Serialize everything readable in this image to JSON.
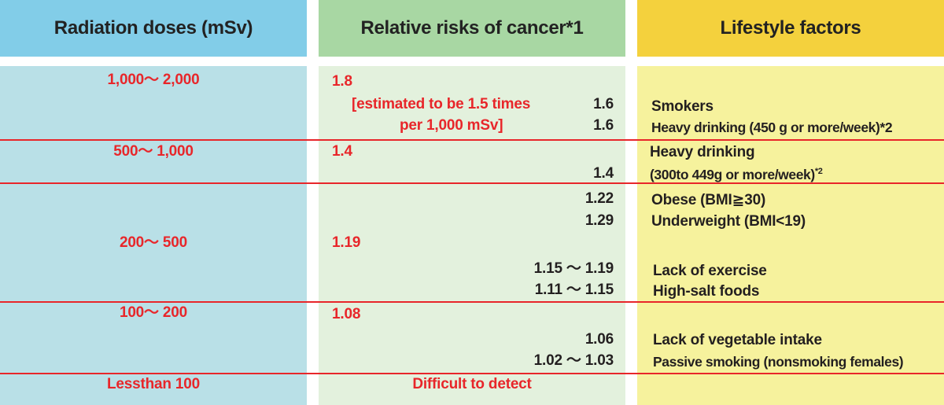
{
  "colors": {
    "radiation_bg": "#b9e0e7",
    "radiation_header": "#82cde8",
    "risk_bg": "#e3f1dd",
    "risk_header": "#a8d7a3",
    "lifestyle_bg": "#f6f29d",
    "lifestyle_header": "#f4d13d",
    "accent_red": "#e8262a",
    "text_dark": "#231f20"
  },
  "headers": {
    "radiation": "Radiation doses (mSv)",
    "risk": "Relative risks of cancer*1",
    "lifestyle": "Lifestyle factors"
  },
  "doses": {
    "d1": "1,000～ 2,000",
    "d2": "500～ 1,000",
    "d3": "200～ 500",
    "d4": "100～ 200",
    "d5": "Lessthan 100"
  },
  "radiation_risks": {
    "r1": "1.8",
    "r1_note_line1": "[estimated to be 1.5 times",
    "r1_note_line2": "per 1,000 mSv]",
    "r2": "1.4",
    "r3": "1.19",
    "r4": "1.08",
    "r5": "Difficult to detect"
  },
  "lifestyle_risks": {
    "smokers": "1.6",
    "heavy_drinking_450": "1.6",
    "heavy_drinking_300": "1.4",
    "obese": "1.22",
    "underweight": "1.29",
    "lack_of_exercise": "1.15 ～ 1.19",
    "high_salt": "1.11 ～ 1.15",
    "lack_of_vegetables": "1.06",
    "passive_smoking": "1.02 ～ 1.03"
  },
  "lifestyle_factors": {
    "smokers": "Smokers",
    "heavy_drinking_450": "Heavy drinking (450 g or more/week)*2",
    "heavy_drinking_300_line1": "Heavy drinking",
    "heavy_drinking_300_line2": "(300to 449g or more/week)",
    "heavy_drinking_300_sup": "*2",
    "obese": "Obese (BMI≧30)",
    "underweight": "Underweight (BMI<19)",
    "lack_of_exercise": "Lack of exercise",
    "high_salt": "High-salt foods",
    "lack_of_vegetables": "Lack of vegetable intake",
    "passive_smoking": "Passive smoking (nonsmoking females)"
  }
}
